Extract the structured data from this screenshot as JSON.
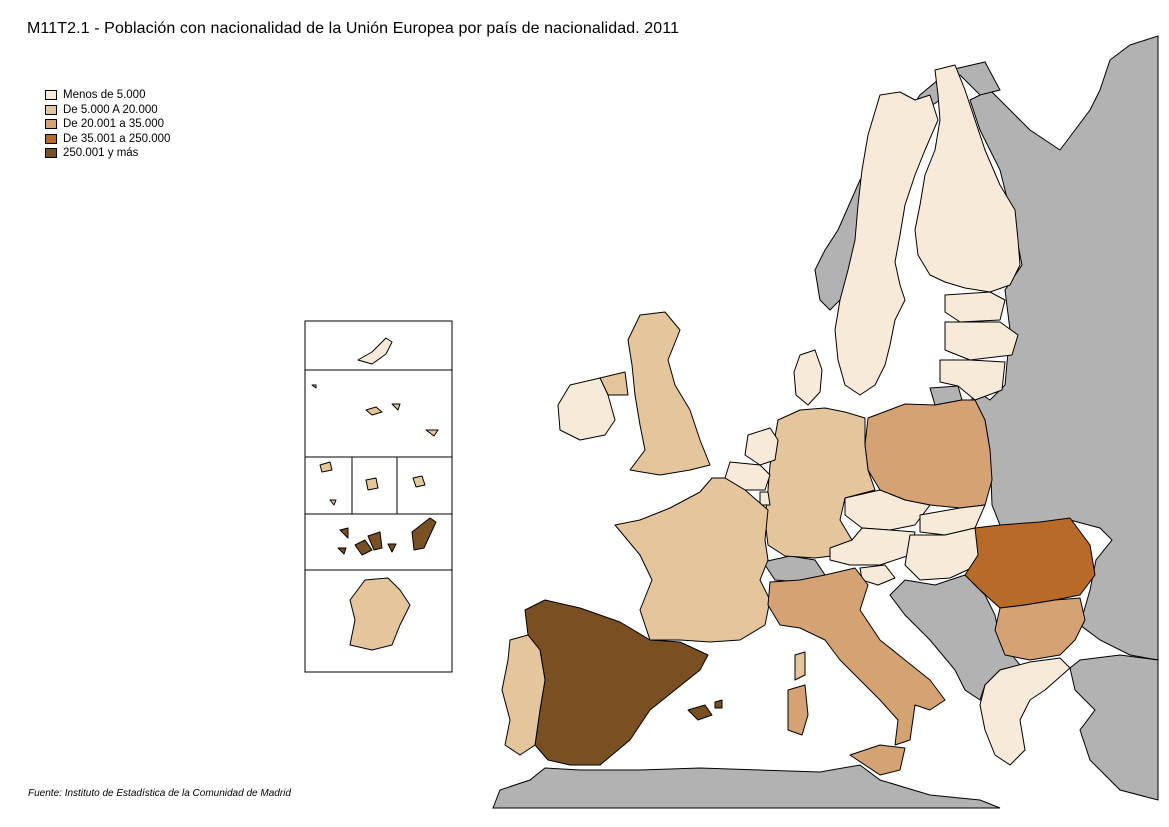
{
  "title": "M11T2.1 - Población con nacionalidad de la Unión Europea por país de nacionalidad. 2011",
  "legend": [
    {
      "label": "Menos de 5.000",
      "color": "#f8ead8"
    },
    {
      "label": "De 5.000 A 20.000",
      "color": "#e5c59c"
    },
    {
      "label": "De 20.001  a 35.000",
      "color": "#d4a273"
    },
    {
      "label": "De 35.001  a 250.000",
      "color": "#b86a28"
    },
    {
      "label": "250.001 y  más",
      "color": "#7a5023"
    }
  ],
  "source": "Fuente: Instituto de Estadística de la Comunidad de Madrid",
  "non_eu_color": "#b2b2b2",
  "countries": [
    {
      "name": "Spain",
      "class": "250.001 y  más"
    },
    {
      "name": "Romania",
      "class": "De 35.001  a 250.000"
    },
    {
      "name": "Poland",
      "class": "De 20.001  a 35.000"
    },
    {
      "name": "Italy",
      "class": "De 20.001  a 35.000"
    },
    {
      "name": "Bulgaria",
      "class": "De 20.001  a 35.000"
    },
    {
      "name": "France",
      "class": "De 5.000 A 20.000"
    },
    {
      "name": "Germany",
      "class": "De 5.000 A 20.000"
    },
    {
      "name": "United Kingdom",
      "class": "De 5.000 A 20.000"
    },
    {
      "name": "Portugal",
      "class": "De 5.000 A 20.000"
    },
    {
      "name": "Ireland",
      "class": "Menos de 5.000"
    },
    {
      "name": "Sweden",
      "class": "Menos de 5.000"
    },
    {
      "name": "Finland",
      "class": "Menos de 5.000"
    },
    {
      "name": "Greece",
      "class": "Menos de 5.000"
    }
  ]
}
